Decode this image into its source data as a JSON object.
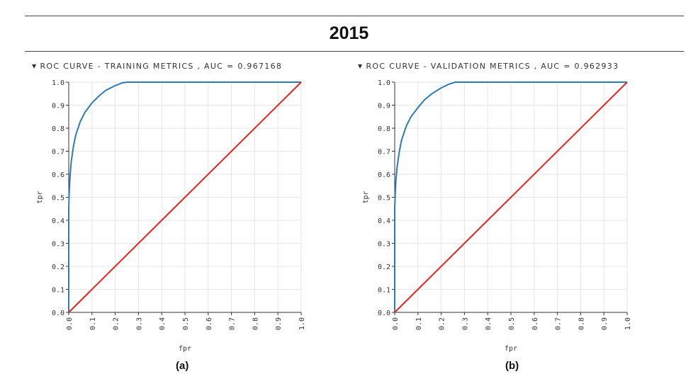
{
  "header": {
    "title": "2015"
  },
  "chart_data": [
    {
      "type": "line",
      "title": "ROC CURVE - TRAINING METRICS , AUC = 0.967168",
      "xlabel": "fpr",
      "ylabel": "tpr",
      "xlim": [
        0,
        1
      ],
      "ylim": [
        0,
        1
      ],
      "xticks": [
        "0.0",
        "0.1",
        "0.2",
        "0.3",
        "0.4",
        "0.5",
        "0.6",
        "0.7",
        "0.8",
        "0.9",
        "1.0"
      ],
      "yticks": [
        "0.0",
        "0.1",
        "0.2",
        "0.3",
        "0.4",
        "0.5",
        "0.6",
        "0.7",
        "0.8",
        "0.9",
        "1.0"
      ],
      "grid": true,
      "caption": "(a)",
      "series": [
        {
          "color": "#2c7bb6",
          "x": [
            0,
            0,
            0.002,
            0.005,
            0.01,
            0.02,
            0.03,
            0.05,
            0.07,
            0.1,
            0.13,
            0.16,
            0.2,
            0.23,
            0.25,
            0.3,
            0.4,
            0.6,
            0.8,
            1.0
          ],
          "y": [
            0,
            0.45,
            0.52,
            0.58,
            0.65,
            0.72,
            0.77,
            0.83,
            0.87,
            0.91,
            0.94,
            0.965,
            0.985,
            0.997,
            1.0,
            1.0,
            1.0,
            1.0,
            1.0,
            1.0
          ]
        },
        {
          "color": "#e8221f",
          "x": [
            0,
            1
          ],
          "y": [
            0,
            1
          ]
        }
      ]
    },
    {
      "type": "line",
      "title": "ROC CURVE - VALIDATION METRICS , AUC = 0.962933",
      "xlabel": "fpr",
      "ylabel": "tpr",
      "xlim": [
        0,
        1
      ],
      "ylim": [
        0,
        1
      ],
      "xticks": [
        "0.0",
        "0.1",
        "0.2",
        "0.3",
        "0.4",
        "0.5",
        "0.6",
        "0.7",
        "0.8",
        "0.9",
        "1.0"
      ],
      "yticks": [
        "0.0",
        "0.1",
        "0.2",
        "0.3",
        "0.4",
        "0.5",
        "0.6",
        "0.7",
        "0.8",
        "0.9",
        "1.0"
      ],
      "grid": true,
      "caption": "(b)",
      "series": [
        {
          "color": "#2c7bb6",
          "x": [
            0,
            0,
            0.002,
            0.005,
            0.01,
            0.02,
            0.03,
            0.05,
            0.07,
            0.1,
            0.13,
            0.16,
            0.2,
            0.23,
            0.26,
            0.3,
            0.4,
            0.6,
            0.8,
            1.0
          ],
          "y": [
            0,
            0.45,
            0.51,
            0.57,
            0.63,
            0.7,
            0.75,
            0.81,
            0.85,
            0.89,
            0.925,
            0.95,
            0.975,
            0.99,
            1.0,
            1.0,
            1.0,
            1.0,
            1.0,
            1.0
          ]
        },
        {
          "color": "#e8221f",
          "x": [
            0,
            1
          ],
          "y": [
            0,
            1
          ]
        }
      ]
    }
  ]
}
